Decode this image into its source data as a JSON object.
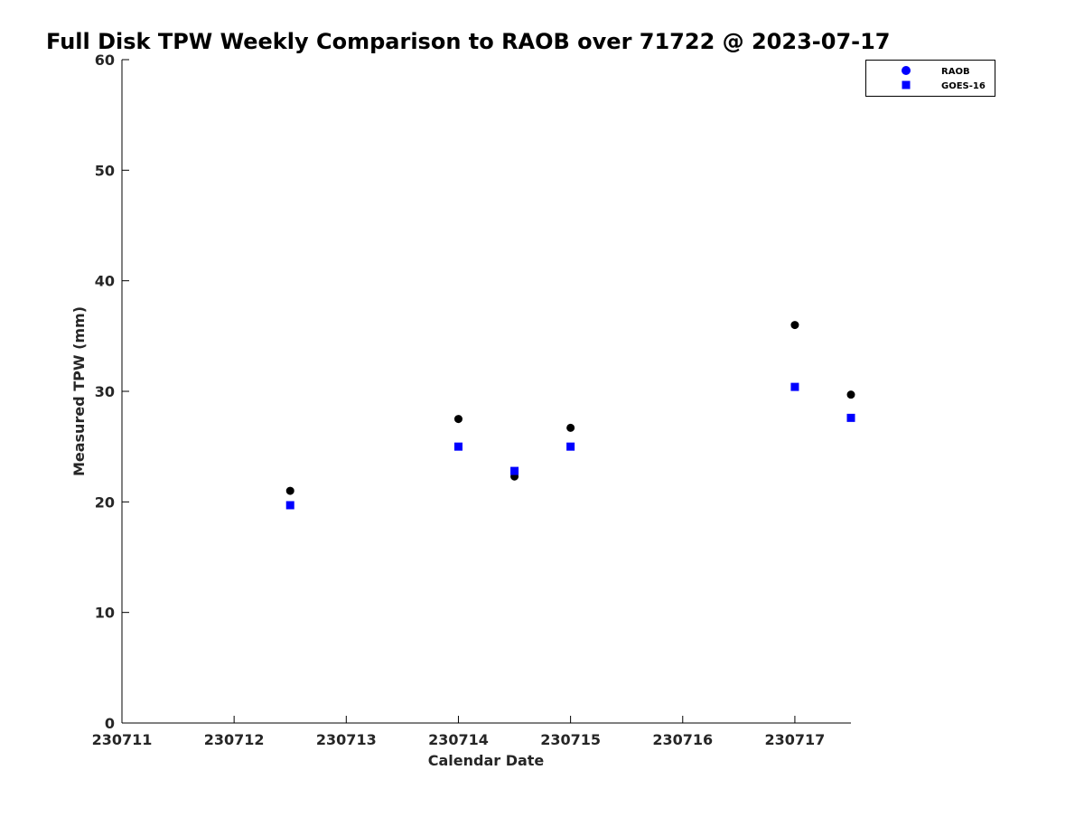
{
  "chart_data": {
    "type": "scatter",
    "title": "Full Disk TPW Weekly Comparison to RAOB over 71722 @ 2023-07-17",
    "xlabel": "Calendar Date",
    "ylabel": "Measured TPW (mm)",
    "xlim": [
      230711,
      230717.5
    ],
    "ylim": [
      0,
      60
    ],
    "xticks": [
      230711,
      230712,
      230713,
      230714,
      230715,
      230716,
      230717
    ],
    "xtick_labels": [
      "230711",
      "230712",
      "230713",
      "230714",
      "230715",
      "230716",
      "230717"
    ],
    "yticks": [
      0,
      10,
      20,
      30,
      40,
      50,
      60
    ],
    "ytick_labels": [
      "0",
      "10",
      "20",
      "30",
      "40",
      "50",
      "60"
    ],
    "grid": false,
    "legend_position": "top-right",
    "series": [
      {
        "name": "RAOB",
        "marker": "circle",
        "color": "#000000",
        "legend_color": "#0000ff",
        "x": [
          230712.5,
          230714.0,
          230714.5,
          230715.0,
          230717.0,
          230717.5
        ],
        "y": [
          21.0,
          27.5,
          22.3,
          26.7,
          36.0,
          29.7
        ]
      },
      {
        "name": "GOES-16",
        "marker": "square",
        "color": "#0000ff",
        "legend_color": "#0000ff",
        "x": [
          230712.5,
          230714.0,
          230714.5,
          230715.0,
          230717.0,
          230717.5
        ],
        "y": [
          19.7,
          25.0,
          22.8,
          25.0,
          30.4,
          27.6
        ]
      }
    ]
  }
}
